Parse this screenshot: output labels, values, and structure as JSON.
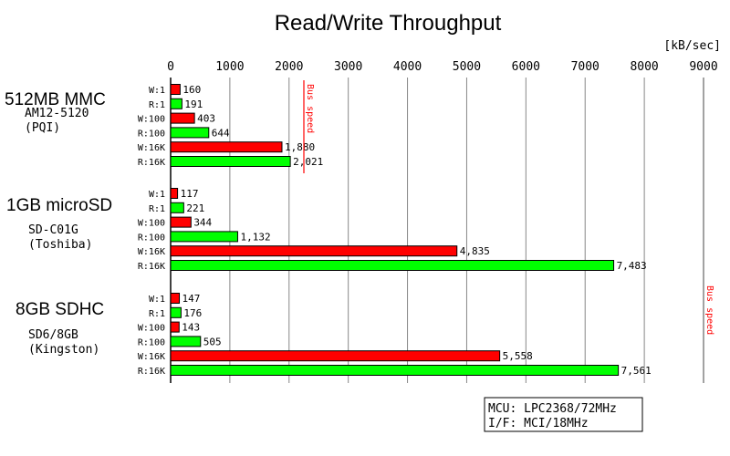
{
  "chart_data": {
    "type": "bar",
    "orientation": "horizontal",
    "title": "Read/Write Throughput",
    "unit_label": "[kB/sec]",
    "xlim": [
      0,
      9000
    ],
    "xticks": [
      0,
      1000,
      2000,
      3000,
      4000,
      5000,
      6000,
      7000,
      8000,
      9000
    ],
    "grid": true,
    "colors": {
      "write": "#ff0000",
      "read": "#00ff00",
      "bus": "#ff0000"
    },
    "groups": [
      {
        "name": "512MB MMC",
        "model": "AM12-5120",
        "maker": "(PQI)",
        "bus_speed": 2250,
        "bus_label": "Bus speed",
        "bars": [
          {
            "label": "W:1",
            "value": 160
          },
          {
            "label": "R:1",
            "value": 191
          },
          {
            "label": "W:100",
            "value": 403
          },
          {
            "label": "R:100",
            "value": 644
          },
          {
            "label": "W:16K",
            "value": 1880
          },
          {
            "label": "R:16K",
            "value": 2021
          }
        ]
      },
      {
        "name": "1GB microSD",
        "model": "SD-C01G",
        "maker": "(Toshiba)",
        "bars": [
          {
            "label": "W:1",
            "value": 117
          },
          {
            "label": "R:1",
            "value": 221
          },
          {
            "label": "W:100",
            "value": 344
          },
          {
            "label": "R:100",
            "value": 1132
          },
          {
            "label": "W:16K",
            "value": 4835
          },
          {
            "label": "R:16K",
            "value": 7483
          }
        ]
      },
      {
        "name": "8GB SDHC",
        "model": "SD6/8GB",
        "maker": "(Kingston)",
        "bars": [
          {
            "label": "W:1",
            "value": 147
          },
          {
            "label": "R:1",
            "value": 176
          },
          {
            "label": "W:100",
            "value": 143
          },
          {
            "label": "R:100",
            "value": 505
          },
          {
            "label": "W:16K",
            "value": 5558
          },
          {
            "label": "R:16K",
            "value": 7561
          }
        ]
      }
    ],
    "sd_bus_speed": 9000,
    "sd_bus_label": "Bus speed",
    "info": [
      "MCU: LPC2368/72MHz",
      "I/F: MCI/18MHz"
    ]
  }
}
